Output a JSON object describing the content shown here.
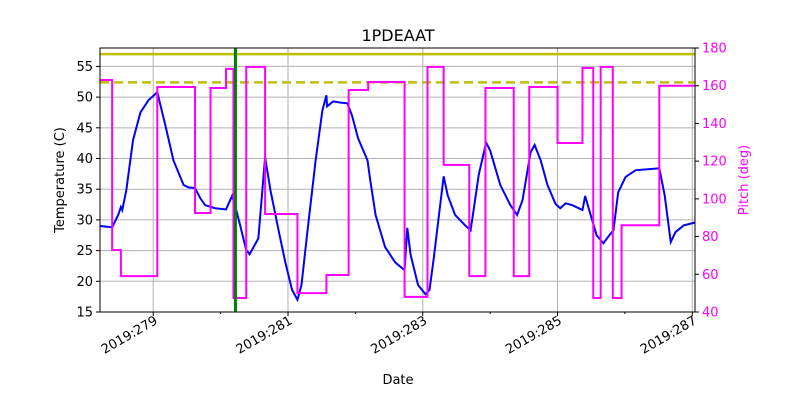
{
  "chart_data": {
    "type": "line",
    "title": "1PDEAAT",
    "xlabel": "Date",
    "ylabel": "Temperature (C)",
    "ylabel_right": "Pitch (deg)",
    "xlim": [
      278.21,
      287.04
    ],
    "ylim": [
      15,
      58
    ],
    "ylim_right": [
      40,
      180
    ],
    "xticks": [
      279,
      281,
      283,
      285,
      287
    ],
    "xtick_labels": [
      "2019:279",
      "2019:281",
      "2019:283",
      "2019:285",
      "2019:287"
    ],
    "yticks": [
      15,
      20,
      25,
      30,
      35,
      40,
      45,
      50,
      55
    ],
    "yticks_right": [
      40,
      60,
      80,
      100,
      120,
      140,
      160,
      180
    ],
    "grid": true,
    "colors": {
      "temperature": "#0000ff",
      "pitch": "#ff00ff",
      "limit": "#bfbf00",
      "marker": "#008000"
    },
    "limit_lines": [
      {
        "value": 57,
        "style": "solid"
      },
      {
        "value": 52.4,
        "style": "dashed"
      }
    ],
    "vertical_marker": 280.22,
    "series": [
      {
        "axis": "left",
        "color": "#0000ff",
        "points": [
          [
            278.21,
            29.0
          ],
          [
            278.39,
            28.8
          ],
          [
            278.48,
            30.8
          ],
          [
            278.52,
            32.1
          ],
          [
            278.54,
            31.6
          ],
          [
            278.6,
            34.8
          ],
          [
            278.7,
            43.0
          ],
          [
            278.81,
            47.5
          ],
          [
            278.93,
            49.5
          ],
          [
            279.06,
            50.8
          ],
          [
            279.18,
            45.4
          ],
          [
            279.3,
            39.7
          ],
          [
            279.45,
            35.7
          ],
          [
            279.52,
            35.3
          ],
          [
            279.62,
            35.2
          ],
          [
            279.7,
            33.5
          ],
          [
            279.77,
            32.4
          ],
          [
            279.92,
            31.9
          ],
          [
            280.08,
            31.7
          ],
          [
            280.17,
            33.9
          ],
          [
            280.22,
            32.1
          ],
          [
            280.29,
            29.1
          ],
          [
            280.38,
            25.1
          ],
          [
            280.43,
            24.4
          ],
          [
            280.48,
            25.4
          ],
          [
            280.56,
            27.0
          ],
          [
            280.66,
            40.2
          ],
          [
            280.74,
            34.8
          ],
          [
            280.86,
            28.3
          ],
          [
            280.96,
            23.1
          ],
          [
            281.06,
            18.6
          ],
          [
            281.14,
            17.0
          ],
          [
            281.2,
            19.4
          ],
          [
            281.29,
            28.3
          ],
          [
            281.41,
            39.7
          ],
          [
            281.51,
            47.8
          ],
          [
            281.57,
            50.3
          ],
          [
            281.58,
            48.5
          ],
          [
            281.67,
            49.3
          ],
          [
            281.78,
            49.1
          ],
          [
            281.88,
            49.0
          ],
          [
            281.95,
            47.0
          ],
          [
            282.04,
            43.3
          ],
          [
            282.18,
            39.7
          ],
          [
            282.22,
            36.5
          ],
          [
            282.3,
            30.8
          ],
          [
            282.44,
            25.6
          ],
          [
            282.59,
            23.1
          ],
          [
            282.73,
            21.8
          ],
          [
            282.77,
            28.7
          ],
          [
            282.82,
            24.3
          ],
          [
            282.93,
            19.4
          ],
          [
            283.04,
            17.9
          ],
          [
            283.1,
            18.6
          ],
          [
            283.16,
            23.5
          ],
          [
            283.31,
            37.1
          ],
          [
            283.37,
            34.0
          ],
          [
            283.48,
            30.8
          ],
          [
            283.63,
            29.1
          ],
          [
            283.71,
            28.3
          ],
          [
            283.83,
            37.3
          ],
          [
            283.94,
            42.6
          ],
          [
            284.0,
            41.3
          ],
          [
            284.15,
            35.7
          ],
          [
            284.3,
            32.4
          ],
          [
            284.4,
            30.8
          ],
          [
            284.48,
            33.2
          ],
          [
            284.6,
            41.0
          ],
          [
            284.66,
            42.2
          ],
          [
            284.75,
            39.7
          ],
          [
            284.85,
            35.7
          ],
          [
            284.97,
            32.6
          ],
          [
            285.04,
            31.9
          ],
          [
            285.12,
            32.7
          ],
          [
            285.22,
            32.4
          ],
          [
            285.37,
            31.6
          ],
          [
            285.41,
            33.9
          ],
          [
            285.47,
            31.6
          ],
          [
            285.58,
            27.5
          ],
          [
            285.68,
            26.2
          ],
          [
            285.79,
            27.8
          ],
          [
            285.83,
            28.3
          ],
          [
            285.9,
            34.5
          ],
          [
            286.01,
            37.0
          ],
          [
            286.16,
            38.1
          ],
          [
            286.51,
            38.4
          ],
          [
            286.59,
            34.0
          ],
          [
            286.68,
            26.4
          ],
          [
            286.75,
            28.0
          ],
          [
            286.87,
            29.1
          ],
          [
            287.05,
            29.6
          ]
        ]
      },
      {
        "axis": "right",
        "color": "#ff00ff",
        "step": true,
        "points": [
          [
            278.21,
            163
          ],
          [
            278.39,
            72.9
          ],
          [
            278.52,
            59
          ],
          [
            279.06,
            159.3
          ],
          [
            279.62,
            92.5
          ],
          [
            279.85,
            158.8
          ],
          [
            280.08,
            168.9
          ],
          [
            280.19,
            47.4
          ],
          [
            280.38,
            170
          ],
          [
            280.66,
            92
          ],
          [
            281.14,
            50
          ],
          [
            281.57,
            59.6
          ],
          [
            281.9,
            157.7
          ],
          [
            282.19,
            162
          ],
          [
            282.73,
            48
          ],
          [
            283.07,
            170
          ],
          [
            283.31,
            118
          ],
          [
            283.69,
            59
          ],
          [
            283.93,
            158.8
          ],
          [
            284.35,
            59
          ],
          [
            284.58,
            159.3
          ],
          [
            285.0,
            129.6
          ],
          [
            285.37,
            169.4
          ],
          [
            285.53,
            47.4
          ],
          [
            285.64,
            170
          ],
          [
            285.82,
            47.4
          ],
          [
            285.95,
            86
          ],
          [
            286.51,
            160
          ],
          [
            287.05,
            160.5
          ]
        ]
      }
    ]
  }
}
